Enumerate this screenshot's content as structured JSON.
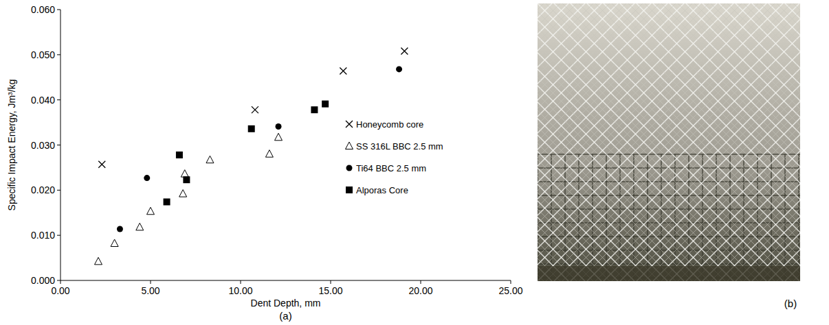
{
  "chart_data": {
    "type": "scatter",
    "x_label": "Dent Depth, mm",
    "y_label": "Specific Impact Energy, Jm³/kg",
    "panel_label": "(a)",
    "xlim": [
      0,
      25
    ],
    "ylim": [
      0,
      0.06
    ],
    "xticks": [
      {
        "value": 0,
        "label": "0.00"
      },
      {
        "value": 5,
        "label": "5.00"
      },
      {
        "value": 10,
        "label": "10.00"
      },
      {
        "value": 15,
        "label": "15.00"
      },
      {
        "value": 20,
        "label": "20.00"
      },
      {
        "value": 25,
        "label": "25.00"
      }
    ],
    "yticks": [
      {
        "value": 0,
        "label": "0.000"
      },
      {
        "value": 0.01,
        "label": "0.010"
      },
      {
        "value": 0.02,
        "label": "0.020"
      },
      {
        "value": 0.03,
        "label": "0.030"
      },
      {
        "value": 0.04,
        "label": "0.040"
      },
      {
        "value": 0.05,
        "label": "0.050"
      },
      {
        "value": 0.06,
        "label": "0.060"
      }
    ],
    "grid": false,
    "legend": "right",
    "series": [
      {
        "name": "Honeycomb core",
        "color": "#000000",
        "marker": "x",
        "x": [
          2.3,
          10.8,
          15.7,
          19.1
        ],
        "values": [
          0.0257,
          0.0378,
          0.0464,
          0.0508
        ]
      },
      {
        "name": "SS 316L BBC 2.5 mm",
        "color": "#000000",
        "marker": "triangle-open",
        "x": [
          2.1,
          3.0,
          4.4,
          5.0,
          6.8,
          6.9,
          8.3,
          11.6,
          12.1
        ],
        "values": [
          0.0042,
          0.0082,
          0.0118,
          0.0153,
          0.0192,
          0.0236,
          0.0267,
          0.028,
          0.0317
        ]
      },
      {
        "name": "Ti64 BBC 2.5 mm",
        "color": "#000000",
        "marker": "circle",
        "x": [
          3.3,
          4.8,
          12.1,
          18.8
        ],
        "values": [
          0.0114,
          0.0227,
          0.0341,
          0.0468
        ]
      },
      {
        "name": "Alporas Core",
        "color": "#000000",
        "marker": "square",
        "x": [
          5.9,
          6.6,
          7.0,
          10.6,
          14.1,
          14.7
        ],
        "values": [
          0.0174,
          0.0278,
          0.0223,
          0.0336,
          0.0378,
          0.0391
        ]
      }
    ]
  },
  "photo": {
    "label": "(b)"
  }
}
